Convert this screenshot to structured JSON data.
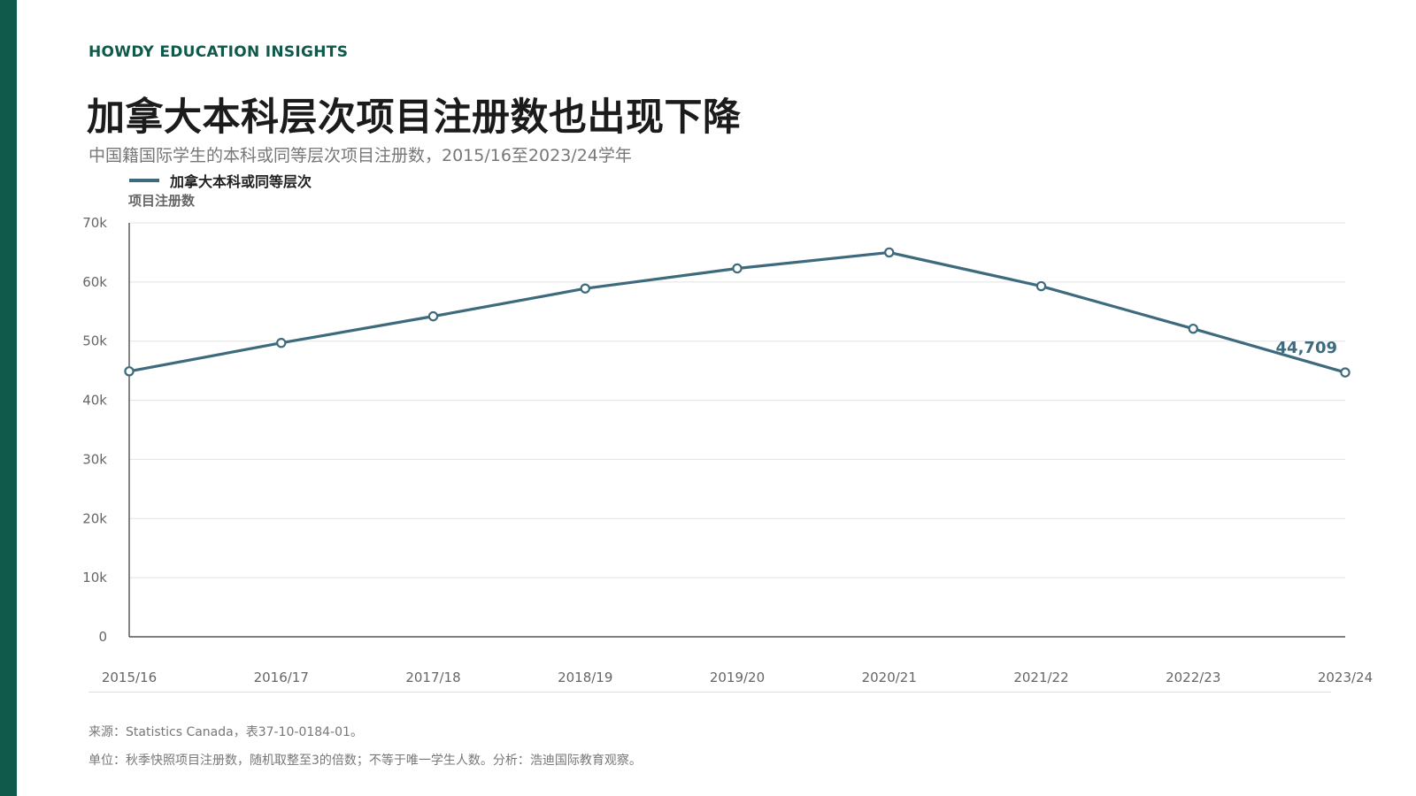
{
  "brand": "HOWDY EDUCATION INSIGHTS",
  "title": "加拿大本科层次项目注册数也出现下降",
  "subtitle": "中国籍国际学生的本科或同等层次项目注册数，2015/16至2023/24学年",
  "footer": {
    "source": "来源：Statistics Canada，表37-10-0184-01。",
    "note": "单位：秋季快照项目注册数，随机取整至3的倍数；不等于唯一学生人数。分析：浩迪国际教育观察。"
  },
  "colors": {
    "accent": "#0f5a4a",
    "series": "#3d6b7d",
    "grid": "#e3e3e3",
    "axis": "#333333",
    "tick_text": "#666666"
  },
  "chart_data": {
    "type": "line",
    "x": [
      "2015/16",
      "2016/17",
      "2017/18",
      "2018/19",
      "2019/20",
      "2020/21",
      "2021/22",
      "2022/23",
      "2023/24"
    ],
    "series": [
      {
        "name": "加拿大本科或同等层次",
        "values": [
          44900,
          49700,
          54200,
          58900,
          62300,
          65000,
          59300,
          52100,
          44709
        ]
      }
    ],
    "ylabel": "项目注册数",
    "xlabel": "",
    "ylim": [
      0,
      70000
    ],
    "yticks": [
      0,
      10000,
      20000,
      30000,
      40000,
      50000,
      60000,
      70000
    ],
    "ytick_labels": [
      "0",
      "10k",
      "20k",
      "30k",
      "40k",
      "50k",
      "60k",
      "70k"
    ],
    "grid": true,
    "legend_position": "top-left",
    "annotation": {
      "x": "2023/24",
      "label": "44,709"
    }
  }
}
